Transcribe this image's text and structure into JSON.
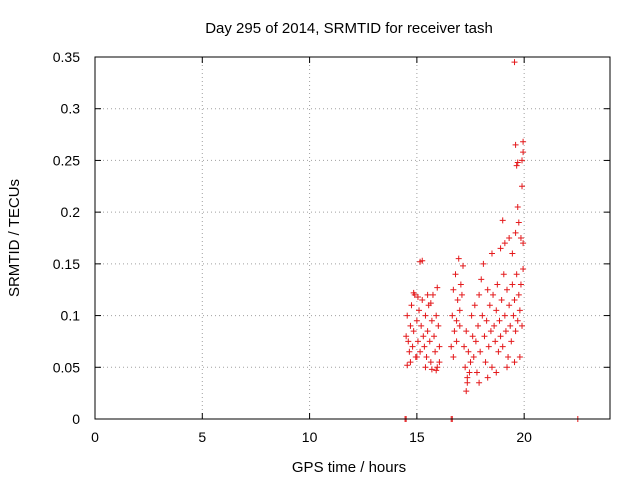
{
  "chart_data": {
    "type": "scatter",
    "title": "Day 295 of 2014, SRMTID for receiver tash",
    "xlabel": "GPS time / hours",
    "ylabel": "SRMTID / TECUs",
    "xlim": [
      0,
      24
    ],
    "ylim": [
      0,
      0.35
    ],
    "x_ticks": [
      0,
      5,
      10,
      15,
      20
    ],
    "y_ticks": [
      0,
      0.05,
      0.1,
      0.15,
      0.2,
      0.25,
      0.3,
      0.35
    ],
    "x_tick_labels": [
      "0",
      "5",
      "10",
      "15",
      "20"
    ],
    "y_tick_labels": [
      "0",
      "0.05",
      "0.1",
      "0.15",
      "0.2",
      "0.25",
      "0.3",
      "0.35"
    ],
    "grid": true,
    "marker": "plus",
    "color": "#e41a1c",
    "series": [
      {
        "name": "SRMTID",
        "points": [
          [
            14.45,
            0.0
          ],
          [
            14.5,
            0.0
          ],
          [
            16.6,
            0.0
          ],
          [
            16.65,
            0.0
          ],
          [
            22.5,
            0.0
          ],
          [
            14.5,
            0.08
          ],
          [
            14.55,
            0.1
          ],
          [
            14.6,
            0.075
          ],
          [
            14.65,
            0.065
          ],
          [
            14.7,
            0.09
          ],
          [
            14.75,
            0.11
          ],
          [
            14.8,
            0.07
          ],
          [
            14.85,
            0.085
          ],
          [
            14.9,
            0.12
          ],
          [
            14.95,
            0.06
          ],
          [
            15.0,
            0.095
          ],
          [
            15.05,
            0.075
          ],
          [
            15.1,
            0.105
          ],
          [
            15.15,
            0.065
          ],
          [
            15.2,
            0.09
          ],
          [
            15.25,
            0.115
          ],
          [
            15.3,
            0.08
          ],
          [
            15.35,
            0.07
          ],
          [
            15.4,
            0.1
          ],
          [
            15.45,
            0.06
          ],
          [
            15.5,
            0.085
          ],
          [
            15.55,
            0.11
          ],
          [
            15.6,
            0.075
          ],
          [
            15.65,
            0.055
          ],
          [
            15.7,
            0.095
          ],
          [
            15.75,
            0.12
          ],
          [
            15.8,
            0.08
          ],
          [
            15.85,
            0.065
          ],
          [
            15.9,
            0.1
          ],
          [
            15.95,
            0.05
          ],
          [
            16.0,
            0.09
          ],
          [
            16.05,
            0.07
          ],
          [
            14.55,
            0.052
          ],
          [
            14.7,
            0.055
          ],
          [
            15.0,
            0.06
          ],
          [
            15.4,
            0.05
          ],
          [
            15.7,
            0.048
          ],
          [
            15.9,
            0.047
          ],
          [
            16.05,
            0.055
          ],
          [
            14.85,
            0.122
          ],
          [
            15.05,
            0.118
          ],
          [
            15.5,
            0.12
          ],
          [
            15.65,
            0.112
          ],
          [
            15.95,
            0.127
          ],
          [
            15.15,
            0.152
          ],
          [
            15.25,
            0.153
          ],
          [
            16.6,
            0.07
          ],
          [
            16.65,
            0.1
          ],
          [
            16.7,
            0.125
          ],
          [
            16.75,
            0.085
          ],
          [
            16.8,
            0.14
          ],
          [
            16.85,
            0.095
          ],
          [
            16.9,
            0.115
          ],
          [
            16.95,
            0.155
          ],
          [
            17.0,
            0.105
          ],
          [
            17.05,
            0.13
          ],
          [
            16.7,
            0.06
          ],
          [
            16.85,
            0.075
          ],
          [
            17.0,
            0.09
          ],
          [
            17.1,
            0.12
          ],
          [
            17.15,
            0.148
          ],
          [
            17.2,
            0.07
          ],
          [
            17.25,
            0.05
          ],
          [
            17.3,
            0.085
          ],
          [
            17.35,
            0.04
          ],
          [
            17.4,
            0.065
          ],
          [
            17.3,
            0.027
          ],
          [
            17.35,
            0.035
          ],
          [
            17.45,
            0.045
          ],
          [
            17.5,
            0.055
          ],
          [
            17.55,
            0.1
          ],
          [
            17.6,
            0.08
          ],
          [
            17.65,
            0.06
          ],
          [
            17.7,
            0.11
          ],
          [
            17.75,
            0.075
          ],
          [
            17.8,
            0.045
          ],
          [
            17.85,
            0.09
          ],
          [
            17.9,
            0.12
          ],
          [
            17.95,
            0.065
          ],
          [
            18.0,
            0.135
          ],
          [
            18.05,
            0.1
          ],
          [
            18.1,
            0.15
          ],
          [
            18.15,
            0.08
          ],
          [
            18.2,
            0.055
          ],
          [
            18.25,
            0.095
          ],
          [
            18.3,
            0.125
          ],
          [
            18.35,
            0.07
          ],
          [
            18.4,
            0.11
          ],
          [
            18.45,
            0.085
          ],
          [
            18.5,
            0.05
          ],
          [
            18.55,
            0.12
          ],
          [
            18.6,
            0.09
          ],
          [
            18.65,
            0.075
          ],
          [
            18.7,
            0.105
          ],
          [
            18.75,
            0.13
          ],
          [
            18.8,
            0.065
          ],
          [
            18.85,
            0.095
          ],
          [
            18.9,
            0.08
          ],
          [
            18.95,
            0.115
          ],
          [
            19.0,
            0.07
          ],
          [
            19.05,
            0.14
          ],
          [
            19.1,
            0.1
          ],
          [
            19.15,
            0.085
          ],
          [
            19.2,
            0.125
          ],
          [
            19.25,
            0.06
          ],
          [
            19.3,
            0.11
          ],
          [
            19.35,
            0.09
          ],
          [
            19.4,
            0.075
          ],
          [
            19.45,
            0.13
          ],
          [
            19.5,
            0.1
          ],
          [
            19.55,
            0.115
          ],
          [
            19.6,
            0.085
          ],
          [
            19.65,
            0.14
          ],
          [
            19.7,
            0.095
          ],
          [
            19.75,
            0.12
          ],
          [
            19.8,
            0.105
          ],
          [
            19.85,
            0.13
          ],
          [
            19.9,
            0.09
          ],
          [
            19.95,
            0.145
          ],
          [
            17.9,
            0.035
          ],
          [
            18.3,
            0.04
          ],
          [
            18.7,
            0.045
          ],
          [
            19.2,
            0.05
          ],
          [
            19.55,
            0.055
          ],
          [
            19.8,
            0.06
          ],
          [
            18.5,
            0.16
          ],
          [
            18.9,
            0.165
          ],
          [
            19.1,
            0.17
          ],
          [
            19.3,
            0.175
          ],
          [
            19.45,
            0.16
          ],
          [
            19.6,
            0.18
          ],
          [
            19.75,
            0.19
          ],
          [
            19.85,
            0.175
          ],
          [
            19.95,
            0.17
          ],
          [
            19.0,
            0.192
          ],
          [
            19.7,
            0.205
          ],
          [
            19.9,
            0.225
          ],
          [
            19.65,
            0.245
          ],
          [
            19.7,
            0.248
          ],
          [
            19.9,
            0.25
          ],
          [
            19.95,
            0.258
          ],
          [
            19.95,
            0.268
          ],
          [
            19.6,
            0.265
          ],
          [
            19.55,
            0.345
          ]
        ]
      }
    ]
  }
}
